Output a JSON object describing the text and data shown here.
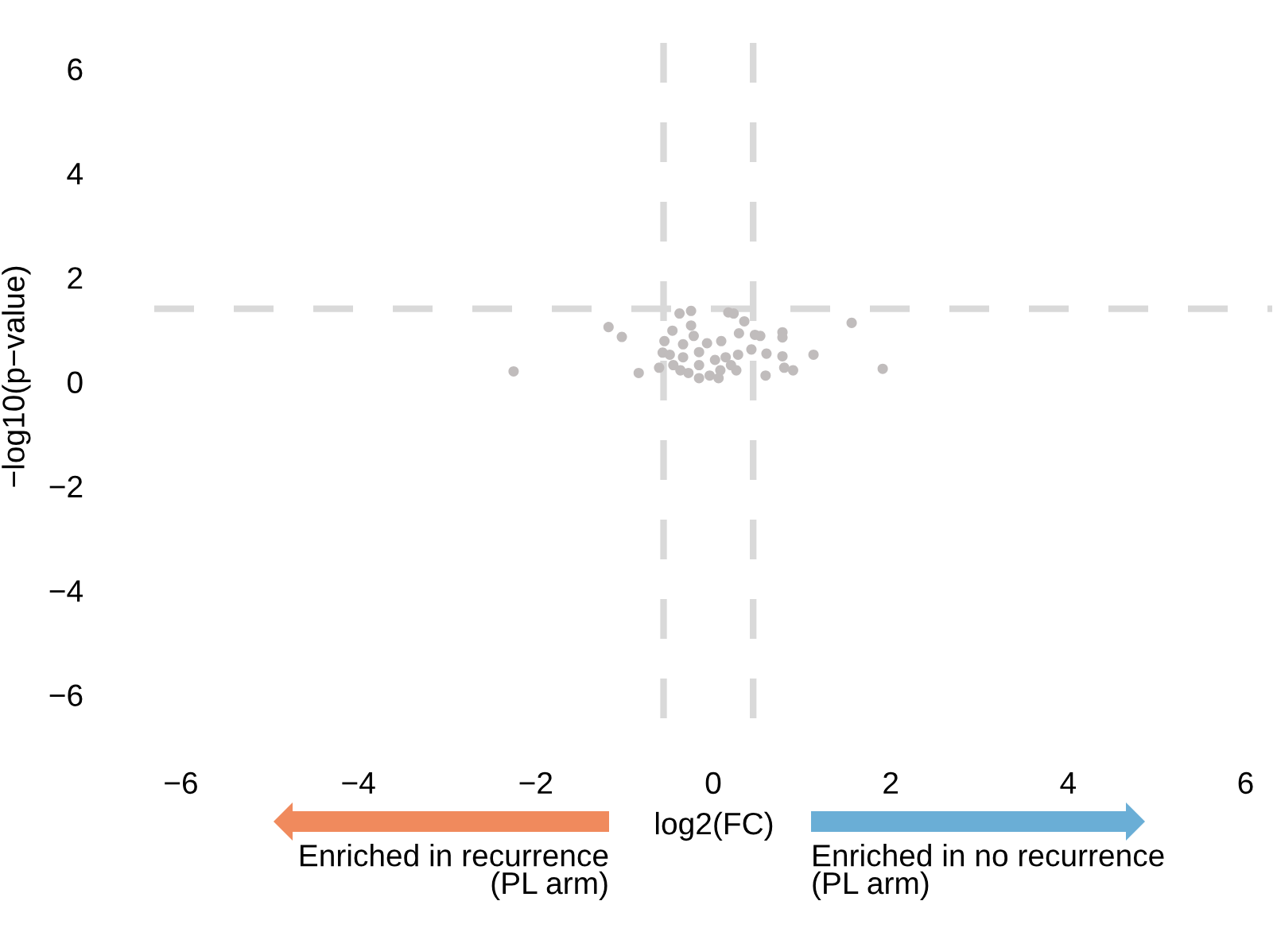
{
  "chart_data": {
    "type": "scatter",
    "xlabel": "log2(FC)",
    "ylabel": "−log10(p−value)",
    "xlim": [
      -6.3,
      6.3
    ],
    "ylim": [
      -6.45,
      6.65
    ],
    "xticks": [
      {
        "value": -6,
        "label": "−6"
      },
      {
        "value": -4,
        "label": "−4"
      },
      {
        "value": -2,
        "label": "−2"
      },
      0,
      2,
      4,
      6
    ],
    "yticks": [
      {
        "value": -6,
        "label": "−6"
      },
      {
        "value": -4,
        "label": "−4"
      },
      {
        "value": -2,
        "label": "−2"
      },
      0,
      2,
      4,
      6
    ],
    "grid": false,
    "legend": false,
    "marker": "circle",
    "series": [
      {
        "color": "#c0bcbc",
        "x": [
          -2.25,
          -1.18,
          -1.03,
          -0.84,
          -0.38,
          -0.25,
          -0.25,
          0.17,
          0.23,
          0.35,
          0.29,
          0.47,
          0.53,
          0.78,
          0.78,
          0.09,
          0.6,
          0.78,
          1.13,
          1.56,
          1.91,
          0.59,
          0.8,
          0.9,
          0.43,
          0.28,
          -0.55,
          -0.57,
          -0.61,
          -0.46,
          -0.45,
          -0.34,
          -0.34,
          -0.28,
          -0.22,
          -0.16,
          -0.16,
          -0.07,
          -0.04,
          0.02,
          0.08,
          0.14,
          0.2,
          0.26,
          -0.16,
          0.06,
          -0.37,
          -0.49
        ],
        "values": [
          0.2,
          1.05,
          0.86,
          0.17,
          1.31,
          1.36,
          1.08,
          1.33,
          1.31,
          1.16,
          0.93,
          0.9,
          0.88,
          0.95,
          0.85,
          0.78,
          0.54,
          0.49,
          0.52,
          1.13,
          0.25,
          0.12,
          0.27,
          0.22,
          0.62,
          0.52,
          0.78,
          0.56,
          0.27,
          0.98,
          0.32,
          0.72,
          0.47,
          0.17,
          0.88,
          0.57,
          0.32,
          0.74,
          0.12,
          0.42,
          0.22,
          0.47,
          0.32,
          0.22,
          0.07,
          0.07,
          0.22,
          0.52
        ]
      }
    ],
    "ref_lines": [
      {
        "axis": "x",
        "value": -0.56,
        "color": "#d9d9d9",
        "line_style": "dashed"
      },
      {
        "axis": "x",
        "value": 0.45,
        "color": "#d9d9d9",
        "line_style": "dashed"
      },
      {
        "axis": "y",
        "value": 1.4,
        "color": "#d9d9d9",
        "line_style": "dashed"
      }
    ],
    "annotations": [
      "Enriched in recurrence\n(PL arm)",
      "Enriched in no recurrence\n(PL arm)"
    ]
  }
}
